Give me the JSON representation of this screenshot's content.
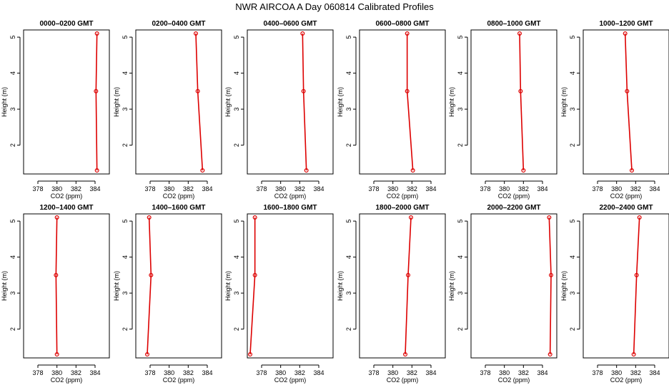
{
  "title": "NWR AIRCOA A  Day 060814  Calibrated Profiles",
  "colors": {
    "series": "#dd0000",
    "axis": "#000000",
    "background": "#ffffff"
  },
  "chart_data": [
    {
      "type": "line",
      "title": "0000–0200 GMT",
      "xlabel": "CO2 (ppm)",
      "ylabel": "Height (m)",
      "xlim": [
        376.5,
        385.5
      ],
      "ylim": [
        1.2,
        5.2
      ],
      "xticks": [
        378,
        380,
        382,
        384
      ],
      "yticks": [
        2,
        3,
        4,
        5
      ],
      "grid": false,
      "series": [
        {
          "x": [
            384.2,
            384.1,
            384.2
          ],
          "y": [
            1.3,
            3.5,
            5.1
          ]
        }
      ]
    },
    {
      "type": "line",
      "title": "0200–0400 GMT",
      "xlabel": "CO2 (ppm)",
      "ylabel": "Height (m)",
      "xlim": [
        376.5,
        385.5
      ],
      "ylim": [
        1.2,
        5.2
      ],
      "xticks": [
        378,
        380,
        382,
        384
      ],
      "yticks": [
        2,
        3,
        4,
        5
      ],
      "grid": false,
      "series": [
        {
          "x": [
            383.5,
            383.0,
            382.8
          ],
          "y": [
            1.3,
            3.5,
            5.1
          ]
        }
      ]
    },
    {
      "type": "line",
      "title": "0400–0600 GMT",
      "xlabel": "CO2 (ppm)",
      "ylabel": "Height (m)",
      "xlim": [
        376.5,
        385.5
      ],
      "ylim": [
        1.2,
        5.2
      ],
      "xticks": [
        378,
        380,
        382,
        384
      ],
      "yticks": [
        2,
        3,
        4,
        5
      ],
      "grid": false,
      "series": [
        {
          "x": [
            382.7,
            382.4,
            382.3
          ],
          "y": [
            1.3,
            3.5,
            5.1
          ]
        }
      ]
    },
    {
      "type": "line",
      "title": "0600–0800 GMT",
      "xlabel": "CO2 (ppm)",
      "ylabel": "Height (m)",
      "xlim": [
        376.5,
        385.5
      ],
      "ylim": [
        1.2,
        5.2
      ],
      "xticks": [
        378,
        380,
        382,
        384
      ],
      "yticks": [
        2,
        3,
        4,
        5
      ],
      "grid": false,
      "series": [
        {
          "x": [
            382.1,
            381.5,
            381.5
          ],
          "y": [
            1.3,
            3.5,
            5.1
          ]
        }
      ]
    },
    {
      "type": "line",
      "title": "0800–1000 GMT",
      "xlabel": "CO2 (ppm)",
      "ylabel": "Height (m)",
      "xlim": [
        376.5,
        385.5
      ],
      "ylim": [
        1.2,
        5.2
      ],
      "xticks": [
        378,
        380,
        382,
        384
      ],
      "yticks": [
        2,
        3,
        4,
        5
      ],
      "grid": false,
      "series": [
        {
          "x": [
            382.0,
            381.7,
            381.6
          ],
          "y": [
            1.3,
            3.5,
            5.1
          ]
        }
      ]
    },
    {
      "type": "line",
      "title": "1000–1200 GMT",
      "xlabel": "CO2 (ppm)",
      "ylabel": "Height (m)",
      "xlim": [
        376.5,
        385.5
      ],
      "ylim": [
        1.2,
        5.2
      ],
      "xticks": [
        378,
        380,
        382,
        384
      ],
      "yticks": [
        2,
        3,
        4,
        5
      ],
      "grid": false,
      "series": [
        {
          "x": [
            381.6,
            381.1,
            380.9
          ],
          "y": [
            1.3,
            3.5,
            5.1
          ]
        }
      ]
    },
    {
      "type": "line",
      "title": "1200–1400 GMT",
      "xlabel": "CO2 (ppm)",
      "ylabel": "Height (m)",
      "xlim": [
        376.5,
        385.5
      ],
      "ylim": [
        1.2,
        5.2
      ],
      "xticks": [
        378,
        380,
        382,
        384
      ],
      "yticks": [
        2,
        3,
        4,
        5
      ],
      "grid": false,
      "series": [
        {
          "x": [
            380.0,
            379.9,
            380.0
          ],
          "y": [
            1.3,
            3.5,
            5.1
          ]
        }
      ]
    },
    {
      "type": "line",
      "title": "1400–1600 GMT",
      "xlabel": "CO2 (ppm)",
      "ylabel": "Height (m)",
      "xlim": [
        376.5,
        385.5
      ],
      "ylim": [
        1.2,
        5.2
      ],
      "xticks": [
        378,
        380,
        382,
        384
      ],
      "yticks": [
        2,
        3,
        4,
        5
      ],
      "grid": false,
      "series": [
        {
          "x": [
            377.7,
            378.1,
            377.9
          ],
          "y": [
            1.3,
            3.5,
            5.1
          ]
        }
      ]
    },
    {
      "type": "line",
      "title": "1600–1800 GMT",
      "xlabel": "CO2 (ppm)",
      "ylabel": "Height (m)",
      "xlim": [
        376.5,
        385.5
      ],
      "ylim": [
        1.2,
        5.2
      ],
      "xticks": [
        378,
        380,
        382,
        384
      ],
      "yticks": [
        2,
        3,
        4,
        5
      ],
      "grid": false,
      "series": [
        {
          "x": [
            376.8,
            377.3,
            377.3
          ],
          "y": [
            1.3,
            3.5,
            5.1
          ]
        }
      ]
    },
    {
      "type": "line",
      "title": "1800–2000 GMT",
      "xlabel": "CO2 (ppm)",
      "ylabel": "Height (m)",
      "xlim": [
        376.5,
        385.5
      ],
      "ylim": [
        1.2,
        5.2
      ],
      "xticks": [
        378,
        380,
        382,
        384
      ],
      "yticks": [
        2,
        3,
        4,
        5
      ],
      "grid": false,
      "series": [
        {
          "x": [
            381.3,
            381.6,
            381.9
          ],
          "y": [
            1.3,
            3.5,
            5.1
          ]
        }
      ]
    },
    {
      "type": "line",
      "title": "2000–2200 GMT",
      "xlabel": "CO2 (ppm)",
      "ylabel": "Height (m)",
      "xlim": [
        376.5,
        385.5
      ],
      "ylim": [
        1.2,
        5.2
      ],
      "xticks": [
        378,
        380,
        382,
        384
      ],
      "yticks": [
        2,
        3,
        4,
        5
      ],
      "grid": false,
      "series": [
        {
          "x": [
            384.8,
            384.9,
            384.7
          ],
          "y": [
            1.3,
            3.5,
            5.1
          ]
        }
      ]
    },
    {
      "type": "line",
      "title": "2200–2400 GMT",
      "xlabel": "CO2 (ppm)",
      "ylabel": "Height (m)",
      "xlim": [
        376.5,
        385.5
      ],
      "ylim": [
        1.2,
        5.2
      ],
      "xticks": [
        378,
        380,
        382,
        384
      ],
      "yticks": [
        2,
        3,
        4,
        5
      ],
      "grid": false,
      "series": [
        {
          "x": [
            381.8,
            382.1,
            382.4
          ],
          "y": [
            1.3,
            3.5,
            5.1
          ]
        }
      ]
    }
  ]
}
